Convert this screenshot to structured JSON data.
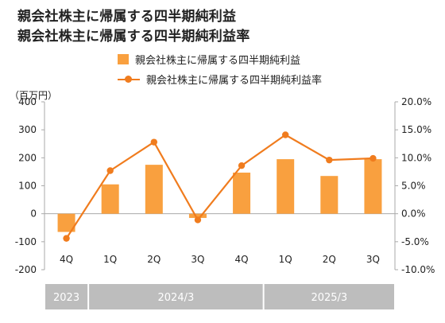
{
  "chart_data": {
    "type": "bar+line",
    "title_line1": "親会社株主に帰属する四半期純利益",
    "title_line2": "親会社株主に帰属する四半期純利益率",
    "unit_left": "（百万円）",
    "categories": [
      "4Q",
      "1Q",
      "2Q",
      "3Q",
      "4Q",
      "1Q",
      "2Q",
      "3Q"
    ],
    "series": [
      {
        "name": "親会社株主に帰属する四半期純利益",
        "type": "bar",
        "axis": "left",
        "values": [
          -65,
          105,
          175,
          -15,
          147,
          195,
          135,
          195
        ]
      },
      {
        "name": "親会社株主に帰属する四半期純利益率",
        "type": "line",
        "axis": "right",
        "values": [
          -4.4,
          7.7,
          12.8,
          -1.1,
          8.6,
          14.1,
          9.6,
          9.9
        ]
      }
    ],
    "y_left": {
      "min": -200,
      "max": 400,
      "step": 100,
      "ticks": [
        "-200",
        "-100",
        "0",
        "100",
        "200",
        "300",
        "400"
      ]
    },
    "y_right": {
      "min": -10,
      "max": 20,
      "step": 5,
      "ticks": [
        "-10.0%",
        "-5.0%",
        "0.0%",
        "5.0%",
        "10.0%",
        "15.0%",
        "20.0%"
      ]
    },
    "periods": [
      {
        "label": "2023",
        "from": 0,
        "to": 0
      },
      {
        "label": "2024/3",
        "from": 1,
        "to": 4
      },
      {
        "label": "2025/3",
        "from": 5,
        "to": 7
      }
    ],
    "grid": false,
    "legend_position": "top",
    "colors": {
      "bar": "#F9A03F",
      "line": "#F07C1E",
      "period_bg": "#BDBDBD",
      "period_text": "#FFFFFF",
      "axis": "#AAAAAA"
    }
  }
}
